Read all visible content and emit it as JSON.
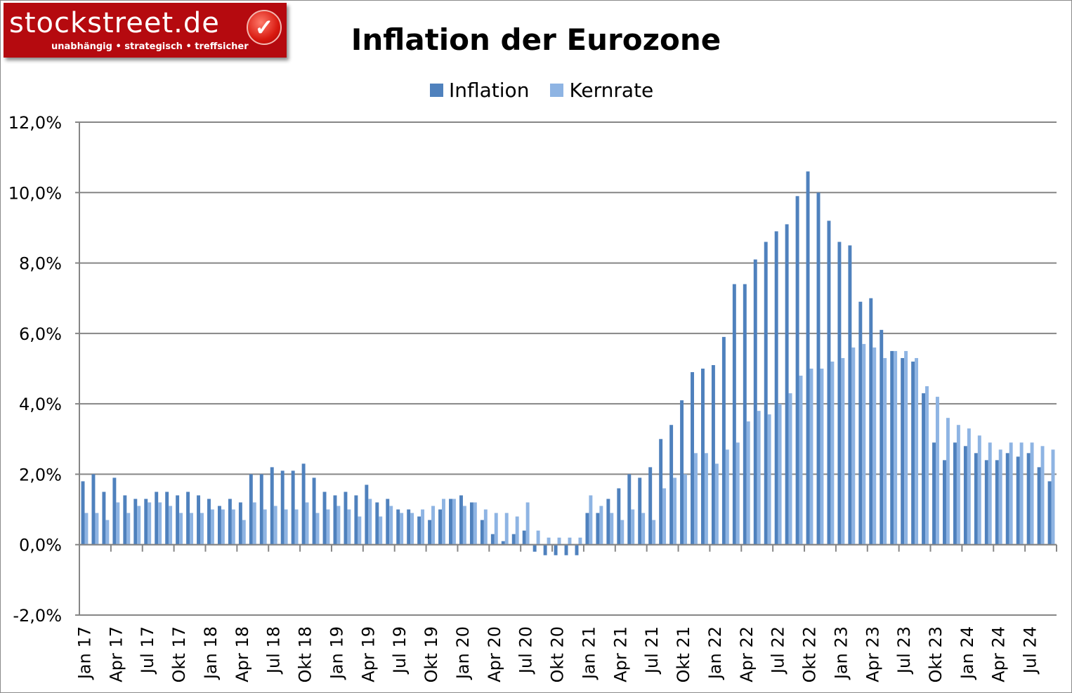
{
  "logo": {
    "text": "stockstreet.de",
    "tagline": "unabhängig • strategisch • treffsicher",
    "icon": "checkmark-icon"
  },
  "chart_data": {
    "type": "bar",
    "title": "Inflation der Eurozone",
    "xlabel": "",
    "ylabel": "",
    "ylim": [
      -2,
      12
    ],
    "yticks": [
      "-2,0%",
      "0,0%",
      "2,0%",
      "4,0%",
      "6,0%",
      "8,0%",
      "10,0%",
      "12,0%"
    ],
    "ytick_values": [
      -2,
      0,
      2,
      4,
      6,
      8,
      10,
      12
    ],
    "grid": true,
    "legend": "top",
    "categories": [
      "Jan 17",
      "Feb 17",
      "Mrz 17",
      "Apr 17",
      "Mai 17",
      "Jun 17",
      "Jul 17",
      "Aug 17",
      "Sep 17",
      "Okt 17",
      "Nov 17",
      "Dez 17",
      "Jan 18",
      "Feb 18",
      "Mrz 18",
      "Apr 18",
      "Mai 18",
      "Jun 18",
      "Jul 18",
      "Aug 18",
      "Sep 18",
      "Okt 18",
      "Nov 18",
      "Dez 18",
      "Jan 19",
      "Feb 19",
      "Mrz 19",
      "Apr 19",
      "Mai 19",
      "Jun 19",
      "Jul 19",
      "Aug 19",
      "Sep 19",
      "Okt 19",
      "Nov 19",
      "Dez 19",
      "Jan 20",
      "Feb 20",
      "Mrz 20",
      "Apr 20",
      "Mai 20",
      "Jun 20",
      "Jul 20",
      "Aug 20",
      "Sep 20",
      "Okt 20",
      "Nov 20",
      "Dez 20",
      "Jan 21",
      "Feb 21",
      "Mrz 21",
      "Apr 21",
      "Mai 21",
      "Jun 21",
      "Jul 21",
      "Aug 21",
      "Sep 21",
      "Okt 21",
      "Nov 21",
      "Dez 21",
      "Jan 22",
      "Feb 22",
      "Mrz 22",
      "Apr 22",
      "Mai 22",
      "Jun 22",
      "Jul 22",
      "Aug 22",
      "Sep 22",
      "Okt 22",
      "Nov 22",
      "Dez 22",
      "Jan 23",
      "Feb 23",
      "Mrz 23",
      "Apr 23",
      "Mai 23",
      "Jun 23",
      "Jul 23",
      "Aug 23",
      "Sep 23",
      "Okt 23",
      "Nov 23",
      "Dez 23",
      "Jan 24",
      "Feb 24",
      "Mrz 24",
      "Apr 24",
      "Mai 24",
      "Jun 24",
      "Jul 24",
      "Aug 24",
      "Sep 24"
    ],
    "xtick_labels_shown": [
      "Jan 17",
      "Apr 17",
      "Jul 17",
      "Okt 17",
      "Jan 18",
      "Apr 18",
      "Jul 18",
      "Okt 18",
      "Jan 19",
      "Apr 19",
      "Jul 19",
      "Okt 19",
      "Jan 20",
      "Apr 20",
      "Jul 20",
      "Okt 20",
      "Jan 21",
      "Apr 21",
      "Jul 21",
      "Okt 21",
      "Jan 22",
      "Apr 22",
      "Jul 22",
      "Okt 22",
      "Jan 23",
      "Apr 23",
      "Jul 23",
      "Okt 23",
      "Jan 24",
      "Apr 24",
      "Jul 24"
    ],
    "series": [
      {
        "name": "Inflation",
        "color": "#4f81bd",
        "values": [
          1.8,
          2.0,
          1.5,
          1.9,
          1.4,
          1.3,
          1.3,
          1.5,
          1.5,
          1.4,
          1.5,
          1.4,
          1.3,
          1.1,
          1.3,
          1.2,
          2.0,
          2.0,
          2.2,
          2.1,
          2.1,
          2.3,
          1.9,
          1.5,
          1.4,
          1.5,
          1.4,
          1.7,
          1.2,
          1.3,
          1.0,
          1.0,
          0.8,
          0.7,
          1.0,
          1.3,
          1.4,
          1.2,
          0.7,
          0.3,
          0.1,
          0.3,
          0.4,
          -0.2,
          -0.3,
          -0.3,
          -0.3,
          -0.3,
          0.9,
          0.9,
          1.3,
          1.6,
          2.0,
          1.9,
          2.2,
          3.0,
          3.4,
          4.1,
          4.9,
          5.0,
          5.1,
          5.9,
          7.4,
          7.4,
          8.1,
          8.6,
          8.9,
          9.1,
          9.9,
          10.6,
          10.0,
          9.2,
          8.6,
          8.5,
          6.9,
          7.0,
          6.1,
          5.5,
          5.3,
          5.2,
          4.3,
          2.9,
          2.4,
          2.9,
          2.8,
          2.6,
          2.4,
          2.4,
          2.6,
          2.5,
          2.6,
          2.2,
          1.8
        ]
      },
      {
        "name": "Kernrate",
        "color": "#8eb4e3",
        "values": [
          0.9,
          0.9,
          0.7,
          1.2,
          0.9,
          1.1,
          1.2,
          1.2,
          1.1,
          0.9,
          0.9,
          0.9,
          1.0,
          1.0,
          1.0,
          0.7,
          1.2,
          1.0,
          1.1,
          1.0,
          1.0,
          1.2,
          0.9,
          1.0,
          1.1,
          1.0,
          0.8,
          1.3,
          0.8,
          1.1,
          0.9,
          0.9,
          1.0,
          1.1,
          1.3,
          1.3,
          1.1,
          1.2,
          1.0,
          0.9,
          0.9,
          0.8,
          1.2,
          0.4,
          0.2,
          0.2,
          0.2,
          0.2,
          1.4,
          1.1,
          0.9,
          0.7,
          1.0,
          0.9,
          0.7,
          1.6,
          1.9,
          2.0,
          2.6,
          2.6,
          2.3,
          2.7,
          2.9,
          3.5,
          3.8,
          3.7,
          4.0,
          4.3,
          4.8,
          5.0,
          5.0,
          5.2,
          5.3,
          5.6,
          5.7,
          5.6,
          5.3,
          5.5,
          5.5,
          5.3,
          4.5,
          4.2,
          3.6,
          3.4,
          3.3,
          3.1,
          2.9,
          2.7,
          2.9,
          2.9,
          2.9,
          2.8,
          2.7
        ]
      }
    ]
  }
}
